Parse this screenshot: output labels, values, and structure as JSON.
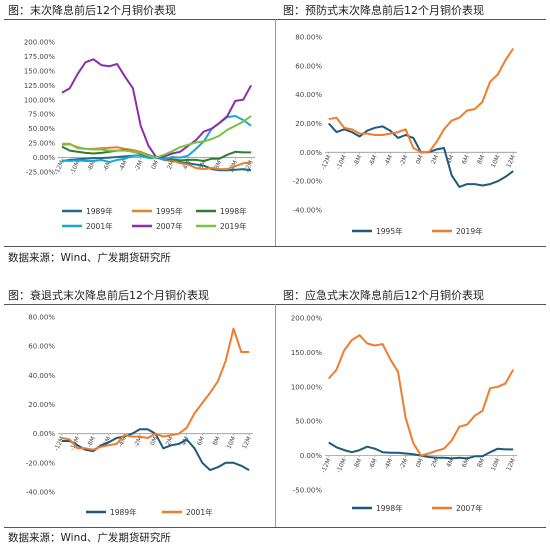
{
  "titles": {
    "p1": "图：末次降息前后12个月铜价表现",
    "p2": "图：预防式末次降息前后12个月铜价表现",
    "p3": "图：衰退式末次降息前后12个月铜价表现",
    "p4": "图：应急式末次降息前后12个月铜价表现"
  },
  "sources": {
    "top": "数据来源：Wind、广发期货研究所",
    "bottom": "数据来源：Wind、广发期货研究所"
  },
  "colors": {
    "1989": "#1f6b8a",
    "1995": "#e3812f",
    "1998": "#2e7d32",
    "2001": "#1ba6d9",
    "2007": "#8b2fa8",
    "2019": "#7cc242",
    "navy": "#1f5a7a",
    "orange": "#ef7d2e"
  },
  "chart_data": [
    {
      "id": "p1",
      "type": "line",
      "title": "图：末次降息前后12个月铜价表现",
      "x": [
        "-12M",
        "-11M",
        "-10M",
        "-9M",
        "-8M",
        "-7M",
        "-6M",
        "-5M",
        "-4M",
        "-3M",
        "-2M",
        "-1M",
        "0M",
        "1M",
        "2M",
        "3M",
        "4M",
        "5M",
        "6M",
        "7M",
        "8M",
        "9M",
        "10M",
        "11M",
        "12M"
      ],
      "xticks": [
        "-12M",
        "-10M",
        "-8M",
        "-6M",
        "-4M",
        "-2M",
        "0M",
        "2M",
        "4M",
        "6M",
        "8M",
        "10M",
        "12M"
      ],
      "ylim": [
        -25,
        200
      ],
      "yticks": [
        "-25.00%",
        "0.00%",
        "25.00%",
        "50.00%",
        "75.00%",
        "100.00%",
        "125.00%",
        "150.00%",
        "175.00%",
        "200.00%"
      ],
      "ytick_values": [
        -25,
        0,
        25,
        50,
        75,
        100,
        125,
        150,
        175,
        200
      ],
      "series": [
        {
          "name": "1989年",
          "color_key": "1989",
          "values": [
            -6,
            -4,
            -3,
            -2,
            -1,
            -1,
            0,
            1,
            2,
            3,
            4,
            2,
            0,
            -4,
            -6,
            -8,
            -10,
            -12,
            -14,
            -20,
            -22,
            -22,
            -21,
            -20,
            -22
          ]
        },
        {
          "name": "1995年",
          "color_key": "1995",
          "values": [
            22,
            23,
            18,
            15,
            15,
            16,
            17,
            18,
            15,
            13,
            10,
            4,
            0,
            -3,
            -5,
            -10,
            -12,
            -18,
            -20,
            -18,
            -20,
            -20,
            -15,
            -10,
            -8
          ]
        },
        {
          "name": "1998年",
          "color_key": "1998",
          "values": [
            19,
            12,
            10,
            8,
            7,
            8,
            10,
            12,
            13,
            10,
            7,
            4,
            0,
            -2,
            -3,
            -5,
            -4,
            -4,
            -6,
            -2,
            -2,
            5,
            10,
            9,
            9
          ]
        },
        {
          "name": "2001年",
          "color_key": "2001",
          "values": [
            -5,
            -6,
            -5,
            -6,
            -6,
            -4,
            -8,
            -4,
            -2,
            3,
            3,
            -1,
            0,
            -3,
            1,
            0,
            3,
            15,
            28,
            50,
            60,
            70,
            72,
            65,
            55
          ]
        },
        {
          "name": "2007年",
          "color_key": "2007",
          "values": [
            112,
            120,
            145,
            165,
            170,
            160,
            158,
            162,
            140,
            120,
            55,
            20,
            0,
            2,
            7,
            10,
            20,
            30,
            45,
            50,
            60,
            72,
            98,
            100,
            125
          ]
        },
        {
          "name": "2019年",
          "color_key": "2019",
          "values": [
            24,
            24,
            16,
            15,
            14,
            14,
            12,
            12,
            12,
            10,
            8,
            3,
            0,
            5,
            11,
            18,
            22,
            26,
            28,
            32,
            38,
            48,
            55,
            62,
            72
          ]
        }
      ]
    },
    {
      "id": "p2",
      "type": "line",
      "title": "图：预防式末次降息前后12个月铜价表现",
      "x": [
        "-12M",
        "-11M",
        "-10M",
        "-9M",
        "-8M",
        "-7M",
        "-6M",
        "-5M",
        "-4M",
        "-3M",
        "-2M",
        "-1M",
        "0M",
        "1M",
        "2M",
        "3M",
        "4M",
        "5M",
        "6M",
        "7M",
        "8M",
        "9M",
        "10M",
        "11M",
        "12M"
      ],
      "xticks": [
        "-12M",
        "-10M",
        "-8M",
        "-6M",
        "-4M",
        "-2M",
        "0M",
        "2M",
        "4M",
        "6M",
        "8M",
        "10M",
        "12M"
      ],
      "ylim": [
        -40,
        80
      ],
      "yticks": [
        "-40.00%",
        "-20.00%",
        "0.00%",
        "20.00%",
        "40.00%",
        "60.00%",
        "80.00%"
      ],
      "ytick_values": [
        -40,
        -20,
        0,
        20,
        40,
        60,
        80
      ],
      "series": [
        {
          "name": "1995年",
          "color_key": "navy",
          "values": [
            20,
            14,
            16,
            14,
            11,
            15,
            17,
            18,
            15,
            10,
            12,
            10,
            0,
            0,
            2,
            3,
            -16,
            -24,
            -22,
            -22,
            -23,
            -22,
            -20,
            -17,
            -13
          ]
        },
        {
          "name": "2019年",
          "color_key": "orange",
          "values": [
            23,
            24,
            17,
            16,
            13,
            13,
            12,
            12,
            13,
            14,
            16,
            3,
            0,
            0,
            7,
            16,
            22,
            24,
            29,
            30,
            35,
            49,
            54,
            64,
            72
          ]
        }
      ]
    },
    {
      "id": "p3",
      "type": "line",
      "title": "图：衰退式末次降息前后12个月铜价表现",
      "x": [
        "-12M",
        "-11M",
        "-10M",
        "-9M",
        "-8M",
        "-7M",
        "-6M",
        "-5M",
        "-4M",
        "-3M",
        "-2M",
        "-1M",
        "0M",
        "1M",
        "2M",
        "3M",
        "4M",
        "5M",
        "6M",
        "7M",
        "8M",
        "9M",
        "10M",
        "11M",
        "12M"
      ],
      "xticks": [
        "-12M",
        "-10M",
        "-8M",
        "-6M",
        "-4M",
        "-2M",
        "0M",
        "2M",
        "4M",
        "6M",
        "8M",
        "10M",
        "12M"
      ],
      "ylim": [
        -40,
        80
      ],
      "yticks": [
        "-40.00%",
        "-20.00%",
        "0.00%",
        "20.00%",
        "40.00%",
        "60.00%",
        "80.00%"
      ],
      "ytick_values": [
        -40,
        -20,
        0,
        20,
        40,
        60,
        80
      ],
      "series": [
        {
          "name": "1989年",
          "color_key": "navy",
          "values": [
            -5,
            -5,
            -8,
            -11,
            -12,
            -8,
            -6,
            -3,
            -2,
            0,
            3,
            3,
            0,
            -10,
            -8,
            -7,
            -4,
            -10,
            -20,
            -25,
            -23,
            -20,
            -20,
            -22,
            -25
          ]
        },
        {
          "name": "2001年",
          "color_key": "orange",
          "values": [
            -3,
            -4,
            -10,
            -10,
            -11,
            -9,
            -8,
            -7,
            -1,
            -2,
            -2,
            -3,
            0,
            -2,
            -1,
            0,
            4,
            14,
            21,
            28,
            36,
            50,
            72,
            56,
            56
          ]
        }
      ]
    },
    {
      "id": "p4",
      "type": "line",
      "title": "图：应急式末次降息前后12个月铜价表现",
      "x": [
        "-12M",
        "-11M",
        "-10M",
        "-9M",
        "-8M",
        "-7M",
        "-6M",
        "-5M",
        "-4M",
        "-3M",
        "-2M",
        "-1M",
        "0M",
        "1M",
        "2M",
        "3M",
        "4M",
        "5M",
        "6M",
        "7M",
        "8M",
        "9M",
        "10M",
        "11M",
        "12M"
      ],
      "xticks": [
        "-12M",
        "-10M",
        "-8M",
        "-6M",
        "-4M",
        "-2M",
        "0M",
        "2M",
        "4M",
        "6M",
        "8M",
        "10M",
        "12M"
      ],
      "ylim": [
        -50,
        200
      ],
      "yticks": [
        "-50.00%",
        "0.00%",
        "50.00%",
        "100.00%",
        "150.00%",
        "200.00%"
      ],
      "ytick_values": [
        -50,
        0,
        50,
        100,
        150,
        200
      ],
      "series": [
        {
          "name": "1998年",
          "color_key": "navy",
          "values": [
            19,
            12,
            8,
            5,
            8,
            13,
            10,
            5,
            4,
            4,
            3,
            2,
            0,
            -2,
            -3,
            -3,
            -4,
            -3,
            -4,
            -1,
            -1,
            5,
            10,
            9,
            9
          ]
        },
        {
          "name": "2007年",
          "color_key": "orange",
          "values": [
            112,
            125,
            153,
            168,
            175,
            163,
            160,
            162,
            140,
            122,
            55,
            18,
            0,
            3,
            7,
            10,
            22,
            42,
            45,
            58,
            65,
            98,
            100,
            105,
            125
          ]
        }
      ]
    }
  ]
}
